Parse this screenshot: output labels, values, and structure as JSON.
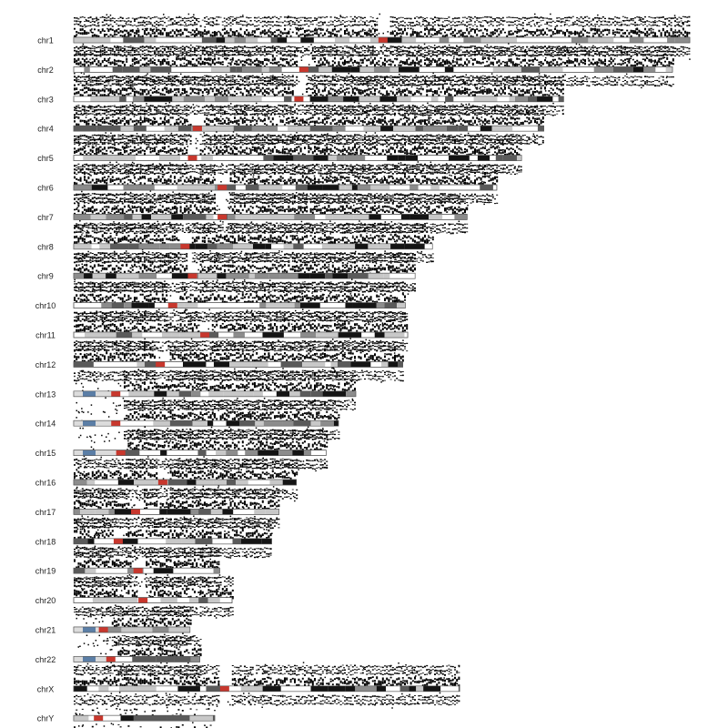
{
  "chart_data": {
    "type": "scatter",
    "title": "",
    "xlabel": "",
    "ylabel": "",
    "grid": false,
    "legend": "none",
    "units": "Mb",
    "colors": {
      "point": "#000000",
      "centromere": "#c8372d",
      "stalk": "#5b7ea6",
      "gneg": "#ffffff",
      "gpos25": "#c8c8c8",
      "gpos50": "#8c8c8c",
      "gpos75": "#5a5a5a",
      "gpos100": "#141414",
      "gvar": "#dcdcdc",
      "outline": "#555555"
    },
    "chromosomes": [
      {
        "name": "chr1",
        "length": 249,
        "centromere": 125,
        "pter": "normal"
      },
      {
        "name": "chr2",
        "length": 242,
        "centromere": 93,
        "pter": "normal"
      },
      {
        "name": "chr3",
        "length": 198,
        "centromere": 91,
        "pter": "normal"
      },
      {
        "name": "chr4",
        "length": 190,
        "centromere": 50,
        "pter": "normal"
      },
      {
        "name": "chr5",
        "length": 181,
        "centromere": 48,
        "pter": "normal"
      },
      {
        "name": "chr6",
        "length": 171,
        "centromere": 60,
        "pter": "normal"
      },
      {
        "name": "chr7",
        "length": 159,
        "centromere": 60,
        "pter": "normal"
      },
      {
        "name": "chr8",
        "length": 145,
        "centromere": 45,
        "pter": "normal"
      },
      {
        "name": "chr9",
        "length": 138,
        "centromere": 48,
        "pter": "normal"
      },
      {
        "name": "chr10",
        "length": 134,
        "centromere": 40,
        "pter": "normal"
      },
      {
        "name": "chr11",
        "length": 135,
        "centromere": 53,
        "pter": "normal"
      },
      {
        "name": "chr12",
        "length": 133,
        "centromere": 35,
        "pter": "normal"
      },
      {
        "name": "chr13",
        "length": 114,
        "centromere": 17,
        "pter": "acro"
      },
      {
        "name": "chr14",
        "length": 107,
        "centromere": 17,
        "pter": "acro"
      },
      {
        "name": "chr15",
        "length": 102,
        "centromere": 19,
        "pter": "acro"
      },
      {
        "name": "chr16",
        "length": 90,
        "centromere": 36,
        "pter": "normal"
      },
      {
        "name": "chr17",
        "length": 83,
        "centromere": 25,
        "pter": "normal"
      },
      {
        "name": "chr18",
        "length": 80,
        "centromere": 18,
        "pter": "normal"
      },
      {
        "name": "chr19",
        "length": 59,
        "centromere": 26,
        "pter": "normal"
      },
      {
        "name": "chr20",
        "length": 64,
        "centromere": 28,
        "pter": "normal"
      },
      {
        "name": "chr21",
        "length": 47,
        "centromere": 12,
        "pter": "acro"
      },
      {
        "name": "chr22",
        "length": 51,
        "centromere": 15,
        "pter": "acro"
      },
      {
        "name": "chrX",
        "length": 156,
        "centromere": 61,
        "pter": "normal"
      },
      {
        "name": "chrY",
        "length": 57,
        "centromere": 10,
        "pter": "normal"
      }
    ]
  }
}
